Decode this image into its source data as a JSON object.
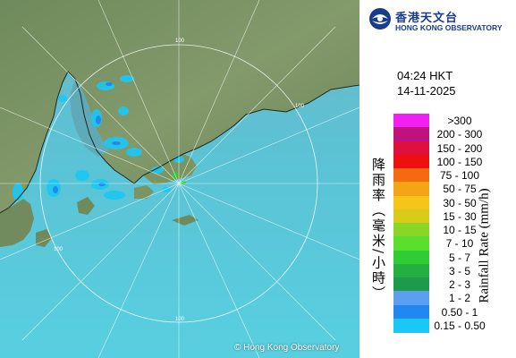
{
  "header": {
    "org_name_zh": "香港天文台",
    "org_name_en": "HONG KONG OBSERVATORY"
  },
  "timestamp": {
    "time": "04:24 HKT",
    "date": "14-11-2025"
  },
  "legend": {
    "title_zh": "降雨率（毫米/小時）",
    "title_en": "Rainfall Rate (mm/h)",
    "items": [
      {
        "label": ">300",
        "color": "#f21ff2"
      },
      {
        "label": "200 - 300",
        "color": "#c0127f"
      },
      {
        "label": "150 - 200",
        "color": "#dd1040"
      },
      {
        "label": "100 - 150",
        "color": "#ee1010"
      },
      {
        "label": "75 - 100",
        "color": "#f56a10"
      },
      {
        "label": "50 - 75",
        "color": "#f3a515"
      },
      {
        "label": "30 - 50",
        "color": "#f6c51a"
      },
      {
        "label": "15 - 30",
        "color": "#d9cc18"
      },
      {
        "label": "10 - 15",
        "color": "#8ad628"
      },
      {
        "label": "7 - 10",
        "color": "#5ae02c"
      },
      {
        "label": "5 - 7",
        "color": "#2fcc35"
      },
      {
        "label": "3 - 5",
        "color": "#23b040"
      },
      {
        "label": "2 - 3",
        "color": "#1d9a4c"
      },
      {
        "label": "1 - 2",
        "color": "#5c9ef0"
      },
      {
        "label": "0.50 - 1",
        "color": "#2088f0"
      },
      {
        "label": "0.15 - 0.50",
        "color": "#1ac8f5"
      }
    ]
  },
  "map": {
    "range_rings": [
      {
        "label": "100"
      },
      {
        "label": "100"
      },
      {
        "label": "100"
      },
      {
        "label": "100"
      }
    ],
    "copyright": "© Hong Kong Observatory"
  }
}
